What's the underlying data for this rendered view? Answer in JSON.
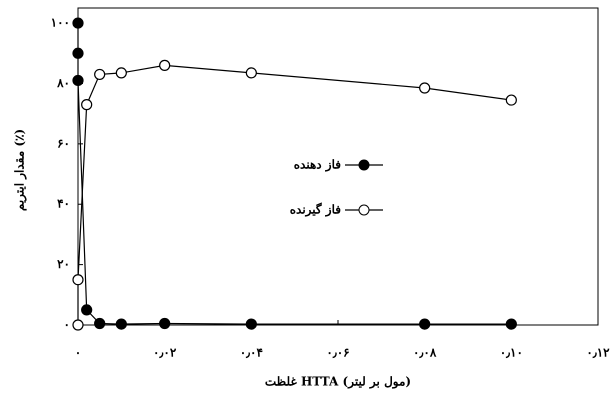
{
  "chart_data": {
    "type": "line",
    "x_label": "غلظت HTTA (مول بر لیتر)",
    "y_label": "مقدار ایتریم (٪)",
    "xlim": [
      0,
      0.12
    ],
    "ylim": [
      0,
      105
    ],
    "xticks": [
      {
        "value": 0,
        "label": "۰"
      },
      {
        "value": 0.02,
        "label": "۰٫۰۲"
      },
      {
        "value": 0.04,
        "label": "۰٫۰۴"
      },
      {
        "value": 0.06,
        "label": "۰٫۰۶"
      },
      {
        "value": 0.08,
        "label": "۰٫۰۸"
      },
      {
        "value": 0.1,
        "label": "۰٫۱۰"
      },
      {
        "value": 0.12,
        "label": "۰٫۱۲"
      }
    ],
    "yticks": [
      {
        "value": 0,
        "label": "۰"
      },
      {
        "value": 20,
        "label": "۲۰"
      },
      {
        "value": 40,
        "label": "۴۰"
      },
      {
        "value": 60,
        "label": "۶۰"
      },
      {
        "value": 80,
        "label": "۸۰"
      },
      {
        "value": 100,
        "label": "۱۰۰"
      }
    ],
    "legend": "center",
    "series": [
      {
        "name": "فاز دهنده",
        "color": "#000000",
        "marker": "filled",
        "x": [
          0,
          0,
          0,
          0.002,
          0.005,
          0.01,
          0.02,
          0.04,
          0.08,
          0.1
        ],
        "values": [
          100,
          90,
          81,
          5,
          0.5,
          0.3,
          0.5,
          0.3,
          0.3,
          0.3
        ]
      },
      {
        "name": "فاز گیرنده",
        "color": "#000000",
        "marker": "open",
        "x": [
          0,
          0,
          0.002,
          0.005,
          0.01,
          0.02,
          0.04,
          0.08,
          0.1
        ],
        "values": [
          0,
          15,
          73,
          83,
          83.5,
          86,
          83.5,
          78.5,
          74.5
        ]
      }
    ]
  }
}
